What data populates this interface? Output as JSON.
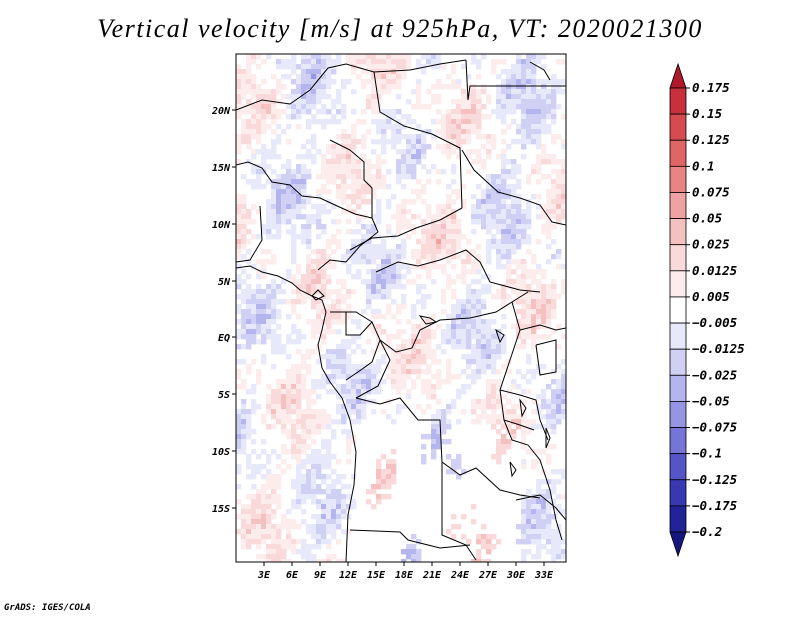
{
  "title": "Vertical velocity [m/s] at 925hPa, VT: 2020021300",
  "credit": "GrADS: IGES/COLA",
  "map": {
    "lat_ticks": [
      "20N",
      "15N",
      "10N",
      "5N",
      "EQ",
      "5S",
      "10S",
      "15S"
    ],
    "lon_ticks": [
      "3E",
      "6E",
      "9E",
      "12E",
      "15E",
      "18E",
      "21E",
      "24E",
      "27E",
      "30E",
      "33E"
    ]
  },
  "colorbar": {
    "labels": [
      "0.175",
      "0.15",
      "0.125",
      "0.1",
      "0.075",
      "0.05",
      "0.025",
      "0.0125",
      "0.005",
      "−0.005",
      "−0.0125",
      "−0.025",
      "−0.05",
      "−0.075",
      "−0.1",
      "−0.125",
      "−0.175",
      "−0.2"
    ],
    "colors": [
      "#b2182b",
      "#c8313c",
      "#d64b50",
      "#e06666",
      "#e88484",
      "#efa2a2",
      "#f5c0c0",
      "#f9d9d9",
      "#fcecec",
      "#ffffff",
      "#e8e8fb",
      "#d0d0f5",
      "#b4b4ee",
      "#9595e4",
      "#7575d8",
      "#5555c8",
      "#3838b2",
      "#222299",
      "#161680"
    ]
  }
}
